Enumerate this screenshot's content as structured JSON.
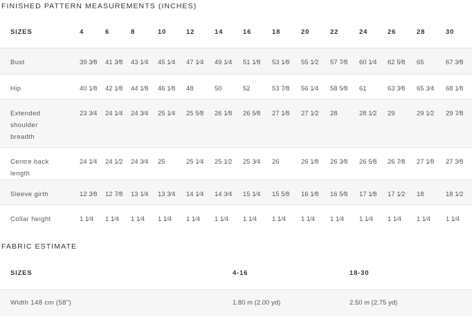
{
  "measurements": {
    "title": "FINISHED PATTERN MEASUREMENTS (INCHES)",
    "header_label": "SIZES",
    "sizes": [
      "4",
      "6",
      "8",
      "10",
      "12",
      "14",
      "16",
      "18",
      "20",
      "22",
      "24",
      "26",
      "28",
      "30"
    ],
    "rows": [
      {
        "label": "Bust",
        "values": [
          "39 3⁄8",
          "41 3⁄8",
          "43 1⁄4",
          "45 1⁄4",
          "47 1⁄4",
          "49 1⁄4",
          "51 1⁄8",
          "53 1⁄8",
          "55 1⁄2",
          "57 7⁄8",
          "60 1⁄4",
          "62 5⁄8",
          "65",
          "67 3⁄8"
        ]
      },
      {
        "label": "Hip",
        "values": [
          "40 1⁄8",
          "42 1⁄8",
          "44 1⁄8",
          "46 1⁄8",
          "48",
          "50",
          "52",
          "53 7⁄8",
          "56 1⁄4",
          "58 5⁄8",
          "61",
          "63 3⁄8",
          "65 3⁄4",
          "68 1⁄8"
        ]
      },
      {
        "label": "Extended shoulder breadth",
        "values": [
          "23 3⁄4",
          "24 1⁄4",
          "24 3⁄4",
          "25 1⁄4",
          "25 5⁄8",
          "26 1⁄8",
          "26 5⁄8",
          "27 1⁄8",
          "27 1⁄2",
          "28",
          "28 1⁄2",
          "29",
          "29 1⁄2",
          "29 7⁄8"
        ]
      },
      {
        "label": "Centre back length",
        "values": [
          "24 1⁄4",
          "24 1⁄2",
          "24 3⁄4",
          "25",
          "25 1⁄4",
          "25 1⁄2",
          "25 3⁄4",
          "26",
          "26 1⁄8",
          "26 3⁄8",
          "26 5⁄8",
          "26 7⁄8",
          "27 1⁄8",
          "27 3⁄8"
        ]
      },
      {
        "label": "Sleeve girth",
        "values": [
          "12 3⁄8",
          "12 7⁄8",
          "13 1⁄4",
          "13 3⁄4",
          "14 1⁄4",
          "14 3⁄4",
          "15 1⁄4",
          "15 5⁄8",
          "16 1⁄8",
          "16 5⁄8",
          "17 1⁄8",
          "17 1⁄2",
          "18",
          "18 1⁄2"
        ]
      },
      {
        "label": "Collar height",
        "values": [
          "1 1⁄4",
          "1 1⁄4",
          "1 1⁄4",
          "1 1⁄4",
          "1 1⁄4",
          "1 1⁄4",
          "1 1⁄4",
          "1 1⁄4",
          "1 1⁄4",
          "1 1⁄4",
          "1 1⁄4",
          "1 1⁄4",
          "1 1⁄4",
          "1 1⁄4"
        ]
      }
    ]
  },
  "fabric": {
    "title": "FABRIC ESTIMATE",
    "header_label": "SIZES",
    "columns": [
      "4-16",
      "18-30"
    ],
    "rows": [
      {
        "label": "Width 148 cm (58\")",
        "values": [
          "1.80 m (2.00 yd)",
          "2.50 m (2.75 yd)"
        ]
      }
    ]
  }
}
